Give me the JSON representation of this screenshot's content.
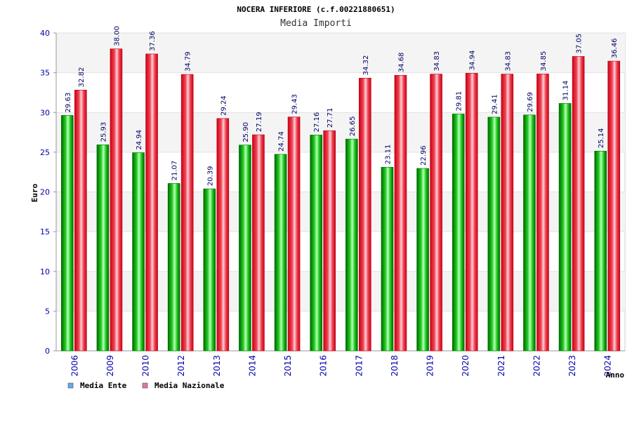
{
  "chart_data": {
    "type": "bar",
    "title": "NOCERA INFERIORE (c.f.00221880651)",
    "subtitle": "Media Importi",
    "xlabel": "Anno",
    "ylabel": "Euro",
    "ylim": [
      0,
      40
    ],
    "yticks": [
      0,
      5,
      10,
      15,
      20,
      25,
      30,
      35,
      40
    ],
    "categories": [
      "2006",
      "2009",
      "2010",
      "2012",
      "2013",
      "2014",
      "2015",
      "2016",
      "2017",
      "2018",
      "2019",
      "2020",
      "2021",
      "2022",
      "2023",
      "2024"
    ],
    "series": [
      {
        "name": "Media Ente",
        "color": "#00aa00",
        "values": [
          29.63,
          25.93,
          24.94,
          21.07,
          20.39,
          25.9,
          24.74,
          27.16,
          26.65,
          23.11,
          22.96,
          29.81,
          29.41,
          29.69,
          31.14,
          25.14
        ],
        "labels": [
          "29.63",
          "25.93",
          "24.94",
          "21.07",
          "20.39",
          "25.90",
          "24.74",
          "27.16",
          "26.65",
          "23.11",
          "22.96",
          "29.81",
          "29.41",
          "29.69",
          "31.14",
          "25.14"
        ]
      },
      {
        "name": "Media Nazionale",
        "color": "#ee1122",
        "values": [
          32.82,
          38.0,
          37.36,
          34.79,
          29.24,
          27.19,
          29.43,
          27.71,
          34.32,
          34.68,
          34.83,
          34.94,
          34.83,
          34.85,
          37.05,
          36.46
        ],
        "labels": [
          "32.82",
          "38.00",
          "37.36",
          "34.79",
          "29.24",
          "27.19",
          "29.43",
          "27.71",
          "34.32",
          "34.68",
          "34.83",
          "34.94",
          "34.83",
          "34.85",
          "37.05",
          "36.46"
        ]
      }
    ],
    "legend": {
      "position": "bottom-left",
      "items": [
        {
          "label": "Media Ente",
          "color": "#66aaee"
        },
        {
          "label": "Media Nazionale",
          "color": "#dd77aa"
        }
      ]
    },
    "grid": true
  }
}
